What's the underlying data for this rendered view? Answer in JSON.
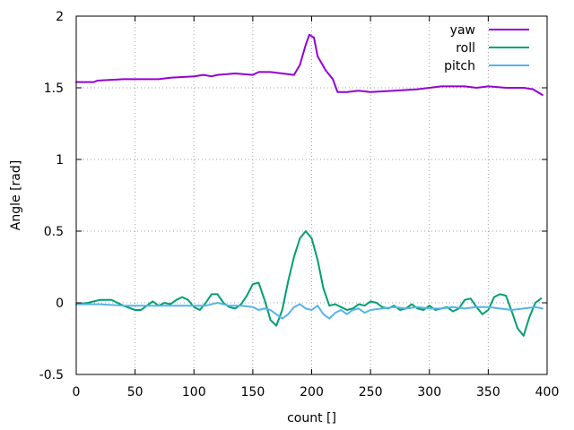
{
  "chart_data": {
    "type": "line",
    "xlabel": "count []",
    "ylabel": "Angle [rad]",
    "xlim": [
      0,
      400
    ],
    "ylim": [
      -0.5,
      2
    ],
    "xticks": [
      0,
      50,
      100,
      150,
      200,
      250,
      300,
      350,
      400
    ],
    "yticks": [
      -0.5,
      0,
      0.5,
      1,
      1.5,
      2
    ],
    "xtick_labels": [
      "0",
      "50",
      "100",
      "150",
      "200",
      "250",
      "300",
      "350",
      "400"
    ],
    "ytick_labels": [
      "-0.5",
      "0",
      "0.5",
      "1",
      "1.5",
      "2"
    ],
    "grid": true,
    "legend_position": "top-right",
    "series": [
      {
        "name": "yaw",
        "color": "#9400d3",
        "x": [
          0,
          15,
          18,
          40,
          70,
          80,
          100,
          108,
          115,
          120,
          135,
          150,
          155,
          165,
          175,
          185,
          190,
          195,
          198,
          202,
          205,
          212,
          218,
          222,
          230,
          240,
          250,
          270,
          290,
          300,
          310,
          320,
          330,
          340,
          350,
          365,
          380,
          388,
          396
        ],
        "y": [
          1.54,
          1.54,
          1.55,
          1.56,
          1.56,
          1.57,
          1.58,
          1.59,
          1.58,
          1.59,
          1.6,
          1.59,
          1.61,
          1.61,
          1.6,
          1.59,
          1.66,
          1.8,
          1.87,
          1.85,
          1.72,
          1.62,
          1.56,
          1.47,
          1.47,
          1.48,
          1.47,
          1.48,
          1.49,
          1.5,
          1.51,
          1.51,
          1.51,
          1.5,
          1.51,
          1.5,
          1.5,
          1.49,
          1.45
        ]
      },
      {
        "name": "roll",
        "color": "#009e73",
        "x": [
          0,
          10,
          20,
          30,
          40,
          50,
          55,
          60,
          65,
          70,
          75,
          80,
          85,
          90,
          95,
          100,
          105,
          110,
          115,
          120,
          125,
          130,
          135,
          140,
          145,
          150,
          155,
          160,
          165,
          170,
          175,
          180,
          185,
          190,
          195,
          200,
          205,
          210,
          215,
          220,
          225,
          230,
          235,
          240,
          245,
          250,
          255,
          260,
          265,
          270,
          275,
          280,
          285,
          290,
          295,
          300,
          305,
          310,
          315,
          320,
          325,
          330,
          335,
          340,
          345,
          350,
          355,
          360,
          365,
          370,
          375,
          380,
          385,
          390,
          395
        ],
        "y": [
          -0.01,
          0.0,
          0.02,
          0.02,
          -0.02,
          -0.05,
          -0.05,
          -0.02,
          0.01,
          -0.02,
          0.0,
          -0.01,
          0.02,
          0.04,
          0.02,
          -0.03,
          -0.05,
          0.0,
          0.06,
          0.06,
          0.0,
          -0.03,
          -0.04,
          -0.01,
          0.05,
          0.13,
          0.14,
          0.02,
          -0.12,
          -0.16,
          -0.05,
          0.15,
          0.32,
          0.45,
          0.5,
          0.45,
          0.3,
          0.1,
          -0.02,
          -0.01,
          -0.03,
          -0.05,
          -0.04,
          -0.01,
          -0.02,
          0.01,
          0.0,
          -0.03,
          -0.04,
          -0.02,
          -0.05,
          -0.04,
          -0.01,
          -0.04,
          -0.05,
          -0.02,
          -0.05,
          -0.04,
          -0.03,
          -0.06,
          -0.04,
          0.02,
          0.03,
          -0.03,
          -0.08,
          -0.05,
          0.04,
          0.06,
          0.05,
          -0.06,
          -0.18,
          -0.23,
          -0.1,
          0.0,
          0.03
        ]
      },
      {
        "name": "pitch",
        "color": "#56b4e9",
        "x": [
          0,
          20,
          40,
          60,
          80,
          100,
          110,
          120,
          130,
          140,
          150,
          155,
          160,
          165,
          170,
          175,
          180,
          185,
          190,
          195,
          200,
          205,
          210,
          215,
          220,
          225,
          230,
          235,
          240,
          245,
          250,
          260,
          270,
          280,
          290,
          300,
          310,
          320,
          330,
          340,
          350,
          360,
          370,
          380,
          390,
          396
        ],
        "y": [
          -0.01,
          -0.01,
          -0.02,
          -0.02,
          -0.02,
          -0.02,
          -0.02,
          0.0,
          -0.02,
          -0.02,
          -0.03,
          -0.05,
          -0.04,
          -0.05,
          -0.08,
          -0.11,
          -0.08,
          -0.03,
          -0.01,
          -0.04,
          -0.05,
          -0.02,
          -0.08,
          -0.11,
          -0.07,
          -0.05,
          -0.08,
          -0.05,
          -0.04,
          -0.07,
          -0.05,
          -0.04,
          -0.03,
          -0.04,
          -0.03,
          -0.04,
          -0.04,
          -0.03,
          -0.04,
          -0.03,
          -0.03,
          -0.04,
          -0.05,
          -0.04,
          -0.03,
          -0.04
        ]
      }
    ]
  }
}
